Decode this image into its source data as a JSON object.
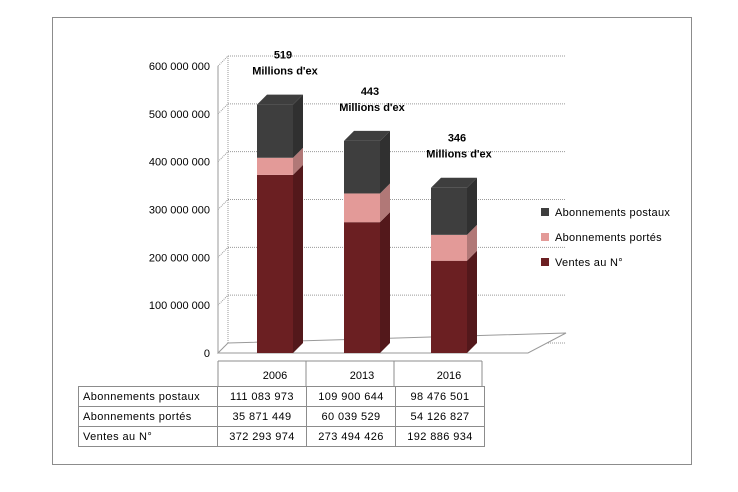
{
  "chart_data": {
    "type": "bar",
    "stacked": true,
    "categories": [
      "2006",
      "2013",
      "2016"
    ],
    "series": [
      {
        "name": "Ventes au N°",
        "values": [
          372293974,
          273494426,
          192886934
        ],
        "color": "#6b1f22"
      },
      {
        "name": "Abonnements portés",
        "values": [
          35871449,
          60039529,
          54126827
        ],
        "color": "#e39a98"
      },
      {
        "name": "Abonnements postaux",
        "values": [
          111083973,
          109900644,
          98476501
        ],
        "color": "#3e3e3e"
      }
    ],
    "ylim": [
      0,
      600000000
    ],
    "y_ticks": [
      "0",
      "100 000 000",
      "200 000 000",
      "300 000 000",
      "400 000 000",
      "500 000 000",
      "600 000 000"
    ],
    "y_tick_values": [
      0,
      100000000,
      200000000,
      300000000,
      400000000,
      500000000,
      600000000
    ],
    "grid": true,
    "legend_position": "right",
    "annotations": [
      {
        "category": "2006",
        "number": "519",
        "unit": "Millions d'ex"
      },
      {
        "category": "2013",
        "number": "443",
        "unit": "Millions d'ex"
      },
      {
        "category": "2016",
        "number": "346",
        "unit": "Millions d'ex"
      }
    ],
    "legend": [
      "Abonnements postaux",
      "Abonnements portés",
      "Ventes au N°"
    ],
    "table": {
      "rows": [
        {
          "label": "Abonnements postaux",
          "values": [
            "111 083 973",
            "109 900 644",
            "98 476 501"
          ],
          "color": "#3e3e3e"
        },
        {
          "label": "Abonnements portés",
          "values": [
            "35 871 449",
            "60 039 529",
            "54 126 827"
          ],
          "color": "#e39a98"
        },
        {
          "label": "Ventes au N°",
          "values": [
            "372 293 974",
            "273 494 426",
            "192 886 934"
          ],
          "color": "#6b1f22"
        }
      ]
    }
  }
}
